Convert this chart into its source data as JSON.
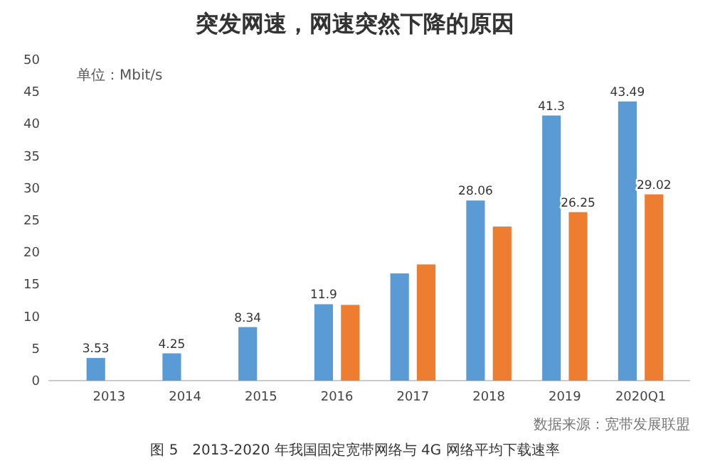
{
  "chart_data": {
    "type": "bar",
    "title": "突发网速，网速突然下降的原因",
    "categories": [
      "2013",
      "2014",
      "2015",
      "2016",
      "2017",
      "2018",
      "2019",
      "2020Q1"
    ],
    "series": [
      {
        "color": "#5b9bd5",
        "values": [
          3.53,
          4.25,
          8.34,
          11.9,
          16.7,
          28.06,
          41.3,
          43.49
        ],
        "value_labels": [
          "3.53",
          "4.25",
          "8.34",
          "11.9",
          null,
          "28.06",
          "41.3",
          "43.49"
        ]
      },
      {
        "color": "#ed7d31",
        "values": [
          null,
          null,
          null,
          11.8,
          18.1,
          24,
          26.25,
          29.02
        ],
        "value_labels": [
          null,
          null,
          null,
          null,
          null,
          null,
          "26.25",
          "29.02"
        ]
      }
    ],
    "ylim": [
      0,
      50
    ],
    "yticks": [
      0,
      5,
      10,
      15,
      20,
      25,
      30,
      35,
      40,
      45,
      50
    ],
    "grid": false,
    "annotations": [
      "单位：Mbit/s",
      "数据来源：宽带发展联盟",
      "图 5　2013-2020 年我国固定宽带网络与 4G 网络平均下载速率"
    ]
  }
}
